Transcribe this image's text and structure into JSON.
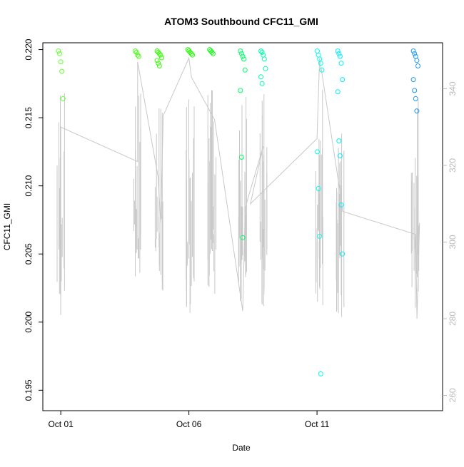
{
  "chart_data": {
    "type": "scatter",
    "title": "ATOM3 Southbound CFC11_GMI",
    "xlabel": "Date",
    "ylabel": "CFC11_GMI",
    "x_ticks": [
      {
        "value": 1,
        "label": "Oct 01"
      },
      {
        "value": 6,
        "label": "Oct 06"
      },
      {
        "value": 11,
        "label": "Oct 11"
      }
    ],
    "xlim": [
      0.3,
      15.9
    ],
    "ylim": [
      0.1935,
      0.2205
    ],
    "y_ticks": [
      0.195,
      0.2,
      0.205,
      0.21,
      0.215,
      0.22
    ],
    "y2_ticks": [
      260,
      280,
      300,
      320,
      340
    ],
    "y2lim": [
      256,
      352
    ],
    "grid": false,
    "point_series": [
      {
        "x": 1.0,
        "color": "#66ff33",
        "values": [
          0.2199,
          0.2197,
          0.2191,
          0.2184,
          0.2164
        ]
      },
      {
        "x": 4.0,
        "color": "#4dff1a",
        "values": [
          0.2199,
          0.2198,
          0.2196,
          0.2195
        ]
      },
      {
        "x": 4.85,
        "color": "#33ff00",
        "values": [
          0.2199,
          0.2198,
          0.2197,
          0.2196,
          0.2194,
          0.2192,
          0.219,
          0.2188
        ]
      },
      {
        "x": 6.05,
        "color": "#22ff00",
        "values": [
          0.22,
          0.2199,
          0.2198,
          0.2197,
          0.2196
        ]
      },
      {
        "x": 6.9,
        "color": "#11ff11",
        "values": [
          0.22,
          0.2199,
          0.2198,
          0.2197
        ]
      },
      {
        "x": 8.1,
        "color": "#00ff66",
        "values": [
          0.2199,
          0.2197,
          0.2195,
          0.2193,
          0.2185,
          0.217,
          0.2121,
          0.2062
        ]
      },
      {
        "x": 8.9,
        "color": "#00ffaa",
        "values": [
          0.2199,
          0.2198,
          0.2196,
          0.2193,
          0.2186,
          0.218,
          0.2175
        ]
      },
      {
        "x": 11.1,
        "color": "#00ffee",
        "values": [
          0.2199,
          0.2196,
          0.2193,
          0.219,
          0.2185,
          0.2125,
          0.2098,
          0.2063,
          0.1962
        ]
      },
      {
        "x": 11.9,
        "color": "#00eeff",
        "values": [
          0.2199,
          0.2197,
          0.2195,
          0.219,
          0.2178,
          0.2169,
          0.2133,
          0.2122,
          0.2086,
          0.205
        ]
      },
      {
        "x": 14.85,
        "color": "#2299ee",
        "values": [
          0.2199,
          0.2197,
          0.2195,
          0.2192,
          0.2188,
          0.2178,
          0.217,
          0.2164,
          0.2155
        ]
      }
    ],
    "line_series": {
      "name": "",
      "color": "#c8c8c8",
      "axis": "right",
      "x": [
        1.0,
        1.0,
        4.0,
        4.0,
        4.8,
        4.9,
        5.0,
        6.0,
        6.1,
        7.0,
        8.1,
        8.2,
        8.9,
        8.4,
        11.0,
        11.1,
        11.9,
        12.0,
        14.85,
        14.9,
        15.0
      ],
      "values": [
        281,
        330,
        321,
        347,
        317,
        305,
        333,
        348,
        343,
        332,
        282,
        309,
        325,
        310,
        327,
        348,
        313,
        308,
        302,
        280,
        305
      ]
    }
  }
}
